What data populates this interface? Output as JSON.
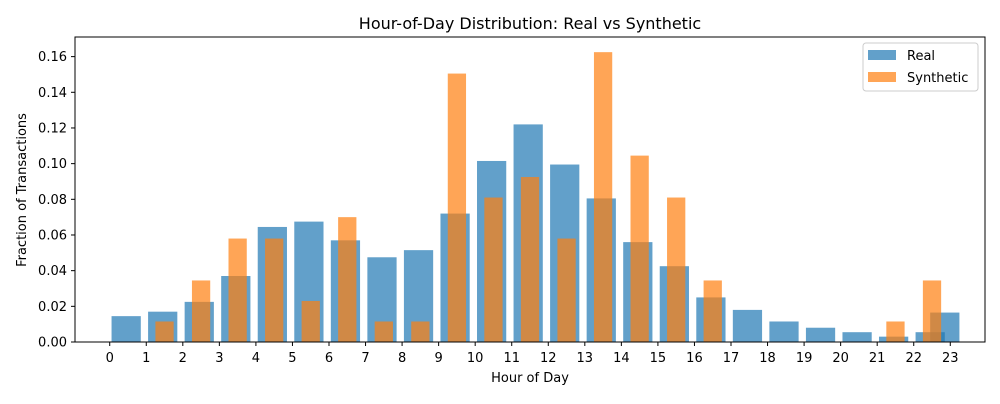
{
  "chart_data": {
    "type": "bar",
    "title": "Hour-of-Day Distribution: Real vs Synthetic",
    "xlabel": "Hour of Day",
    "ylabel": "Fraction of Transactions",
    "ylim": [
      0,
      0.171
    ],
    "yticks": [
      0.0,
      0.02,
      0.04,
      0.06,
      0.08,
      0.1,
      0.12,
      0.14,
      0.16
    ],
    "ytick_labels": [
      "0.00",
      "0.02",
      "0.04",
      "0.06",
      "0.08",
      "0.10",
      "0.12",
      "0.14",
      "0.16"
    ],
    "categories": [
      "0",
      "1",
      "2",
      "3",
      "4",
      "5",
      "6",
      "7",
      "8",
      "9",
      "10",
      "11",
      "12",
      "13",
      "14",
      "15",
      "16",
      "17",
      "18",
      "19",
      "20",
      "21",
      "22",
      "23"
    ],
    "legend_position": "top-right",
    "series": [
      {
        "name": "Real",
        "color": "#1f77b4",
        "opacity": 0.7,
        "x": [
          0,
          1,
          2,
          3,
          4,
          5,
          6,
          7,
          8,
          9,
          10,
          11,
          12,
          13,
          14,
          15,
          16,
          17,
          18,
          19,
          20,
          21,
          22
        ],
        "values": [
          0.0145,
          0.017,
          0.0225,
          0.037,
          0.0645,
          0.0675,
          0.057,
          0.0475,
          0.0515,
          0.072,
          0.1015,
          0.122,
          0.0995,
          0.0805,
          0.056,
          0.0425,
          0.025,
          0.018,
          0.0115,
          0.008,
          0.0055,
          0.003,
          0.0055
        ]
      },
      {
        "name": "Synthetic",
        "color": "#ff7f0e",
        "opacity": 0.7,
        "x": [
          0,
          1,
          2,
          3,
          4,
          5,
          6,
          7,
          8,
          9,
          10,
          11,
          12,
          13,
          14,
          15,
          16,
          17,
          18,
          19,
          20,
          21,
          22
        ],
        "values": [
          0,
          0.0115,
          0.0345,
          0.058,
          0.058,
          0.023,
          0.07,
          0.0115,
          0.0115,
          0.1505,
          0.081,
          0.0925,
          0.058,
          0.1625,
          0.1045,
          0.081,
          0.0345,
          0,
          0,
          0,
          0,
          0.0115,
          0.0345
        ]
      }
    ],
    "extra_real_bar": {
      "x": 22.85,
      "value": 0.0165
    }
  }
}
